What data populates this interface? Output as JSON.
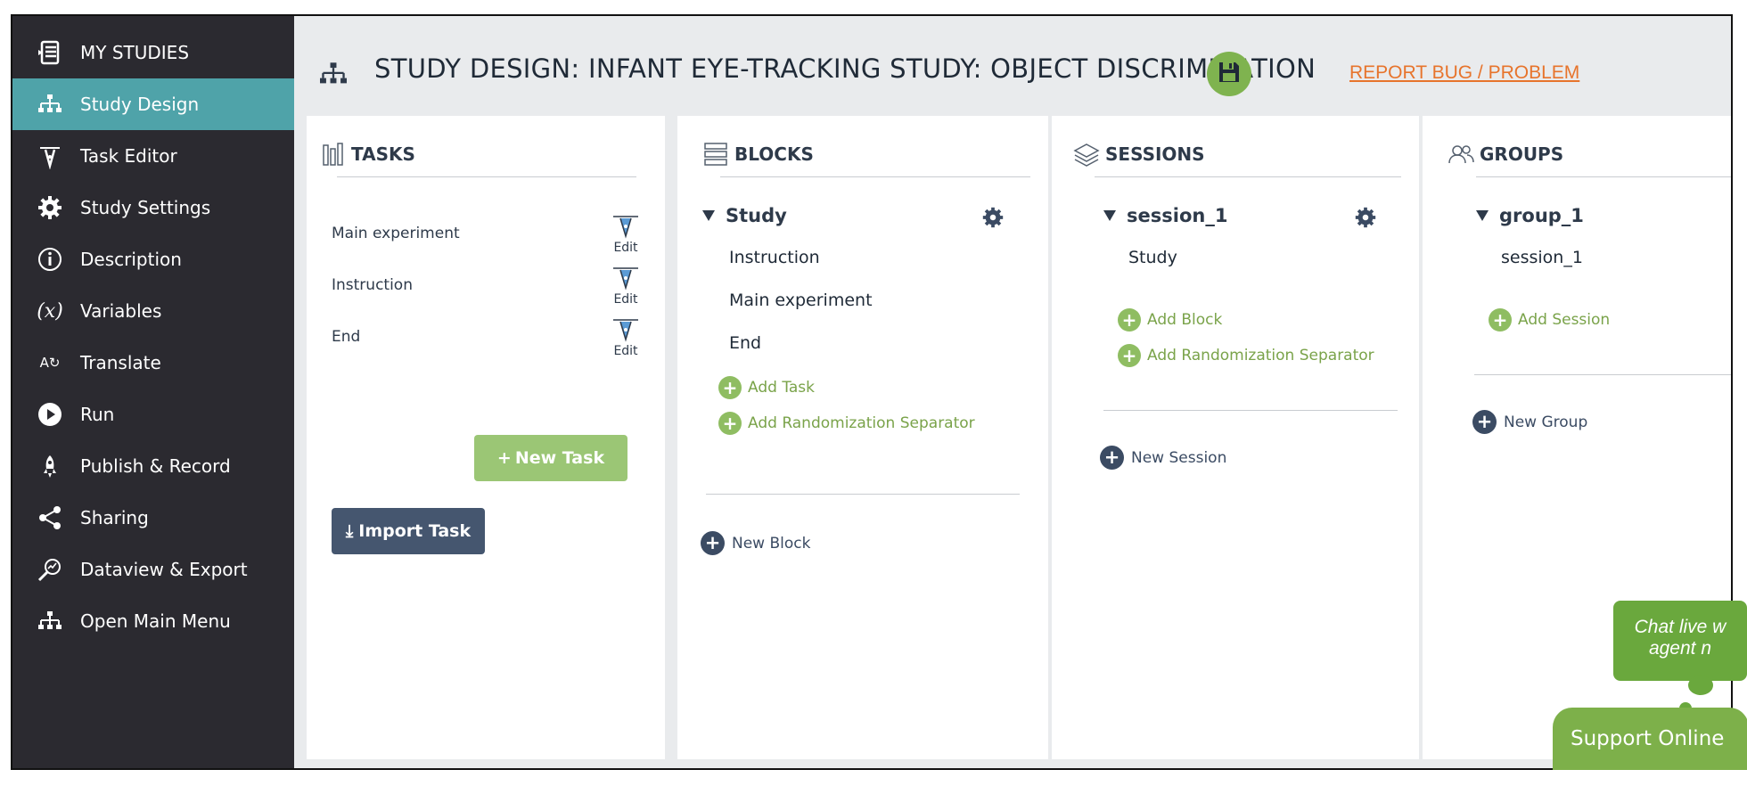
{
  "sidebar": {
    "items": [
      {
        "label": "MY STUDIES",
        "icon": "my-studies-icon"
      },
      {
        "label": "Study Design",
        "icon": "sitemap-icon",
        "active": true
      },
      {
        "label": "Task Editor",
        "icon": "pen-tool-icon"
      },
      {
        "label": "Study Settings",
        "icon": "gear-icon"
      },
      {
        "label": "Description",
        "icon": "info-icon"
      },
      {
        "label": "Variables",
        "icon": "variable-icon"
      },
      {
        "label": "Translate",
        "icon": "translate-icon"
      },
      {
        "label": "Run",
        "icon": "play-icon"
      },
      {
        "label": "Publish & Record",
        "icon": "rocket-icon"
      },
      {
        "label": "Sharing",
        "icon": "share-icon"
      },
      {
        "label": "Dataview & Export",
        "icon": "chart-search-icon"
      },
      {
        "label": "Open Main Menu",
        "icon": "sitemap-icon"
      }
    ]
  },
  "header": {
    "title": "STUDY DESIGN: INFANT EYE-TRACKING STUDY: OBJECT DISCRIMINATION",
    "report_link": "REPORT BUG / PROBLEM"
  },
  "tasks": {
    "heading": "TASKS",
    "items": [
      {
        "name": "Main experiment",
        "edit": "Edit"
      },
      {
        "name": "Instruction",
        "edit": "Edit"
      },
      {
        "name": "End",
        "edit": "Edit"
      }
    ],
    "new_task": "New Task",
    "import_task": "Import Task"
  },
  "blocks": {
    "heading": "BLOCKS",
    "tree": {
      "name": "Study",
      "children": [
        "Instruction",
        "Main experiment",
        "End"
      ]
    },
    "add_task": "Add Task",
    "add_separator": "Add Randomization Separator",
    "new_block": "New Block"
  },
  "sessions": {
    "heading": "SESSIONS",
    "tree": {
      "name": "session_1",
      "children": [
        "Study"
      ]
    },
    "add_block": "Add Block",
    "add_separator": "Add Randomization Separator",
    "new_session": "New Session"
  },
  "groups": {
    "heading": "GROUPS",
    "tree": {
      "name": "group_1",
      "children": [
        "session_1"
      ]
    },
    "add_session": "Add Session",
    "new_group": "New Group"
  },
  "chat": {
    "line1": "Chat live w",
    "line2": "agent n",
    "support": "Support Online"
  },
  "colors": {
    "sidebar_bg": "#2b2a30",
    "active_bg": "#4fa3a9",
    "accent_green": "#8fbd62",
    "report_orange": "#e7742c",
    "dark_blue": "#3b4b63"
  }
}
